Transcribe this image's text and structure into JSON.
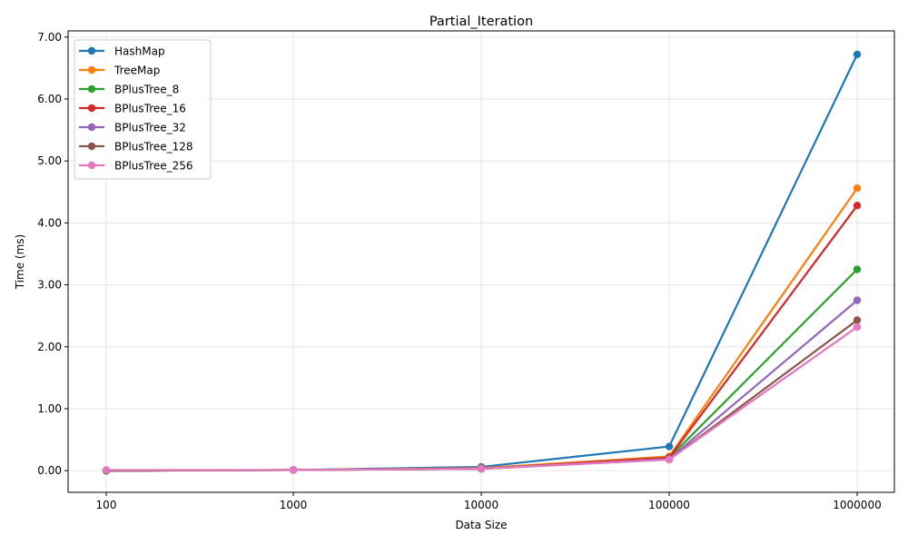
{
  "chart_data": {
    "type": "line",
    "title": "Partial_Iteration",
    "xlabel": "Data Size",
    "ylabel": "Time (ms)",
    "categories": [
      "100",
      "1000",
      "10000",
      "100000",
      "1000000"
    ],
    "ylim": [
      -0.35,
      7.1
    ],
    "yticks": [
      0,
      1,
      2,
      3,
      4,
      5,
      6,
      7
    ],
    "ytick_labels": [
      "0.00",
      "1.00",
      "2.00",
      "3.00",
      "4.00",
      "5.00",
      "6.00",
      "7.00"
    ],
    "grid": true,
    "legend_position": "upper-left",
    "series": [
      {
        "name": "HashMap",
        "color": "#1f77b4",
        "values": [
          0.0,
          0.01,
          0.06,
          0.39,
          6.72
        ]
      },
      {
        "name": "TreeMap",
        "color": "#ff7f0e",
        "values": [
          0.0,
          0.01,
          0.04,
          0.23,
          4.56
        ]
      },
      {
        "name": "BPlusTree_8",
        "color": "#2ca02c",
        "values": [
          0.0,
          0.01,
          0.03,
          0.21,
          3.25
        ]
      },
      {
        "name": "BPlusTree_16",
        "color": "#d62728",
        "values": [
          0.0,
          0.01,
          0.03,
          0.21,
          4.28
        ]
      },
      {
        "name": "BPlusTree_32",
        "color": "#9467bd",
        "values": [
          0.0,
          0.01,
          0.03,
          0.19,
          2.75
        ]
      },
      {
        "name": "BPlusTree_128",
        "color": "#8c564b",
        "values": [
          0.0,
          0.01,
          0.03,
          0.18,
          2.43
        ]
      },
      {
        "name": "BPlusTree_256",
        "color": "#e377c2",
        "values": [
          0.01,
          0.01,
          0.03,
          0.18,
          2.32
        ]
      }
    ]
  }
}
